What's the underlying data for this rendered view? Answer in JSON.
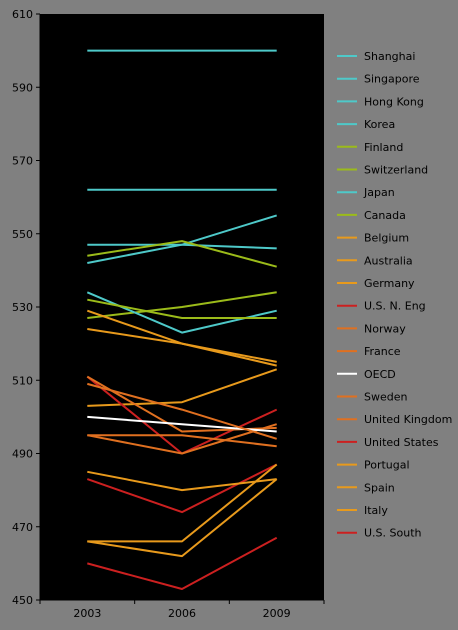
{
  "chart_data": {
    "type": "line",
    "title": "",
    "xlabel": "",
    "ylabel": "",
    "categories": [
      "2003",
      "2006",
      "2009"
    ],
    "ylim": [
      450,
      610
    ],
    "yticks": [
      450,
      470,
      490,
      510,
      530,
      550,
      570,
      590,
      610
    ],
    "grid": false,
    "legend_position": "right",
    "series": [
      {
        "name": "Shanghai",
        "color": "#4ec9c9",
        "values": [
          600,
          600,
          600
        ]
      },
      {
        "name": "Singapore",
        "color": "#4ec9c9",
        "values": [
          562,
          562,
          562
        ]
      },
      {
        "name": "Hong Kong",
        "color": "#4ec9c9",
        "values": [
          542,
          547,
          555
        ]
      },
      {
        "name": "Korea",
        "color": "#4ec9c9",
        "values": [
          547,
          547,
          546
        ]
      },
      {
        "name": "Finland",
        "color": "#9bbb1a",
        "values": [
          544,
          548,
          541
        ]
      },
      {
        "name": "Switzerland",
        "color": "#9bbb1a",
        "values": [
          527,
          530,
          534
        ]
      },
      {
        "name": "Japan",
        "color": "#4ec9c9",
        "values": [
          534,
          523,
          529
        ]
      },
      {
        "name": "Canada",
        "color": "#9bbb1a",
        "values": [
          532,
          527,
          527
        ]
      },
      {
        "name": "Belgium",
        "color": "#e89a1c",
        "values": [
          529,
          520,
          515
        ]
      },
      {
        "name": "Australia",
        "color": "#e89a1c",
        "values": [
          524,
          520,
          514
        ]
      },
      {
        "name": "Germany",
        "color": "#e89a1c",
        "values": [
          503,
          504,
          513
        ]
      },
      {
        "name": "U.S. N. Eng",
        "color": "#cc2020",
        "values": [
          511,
          490,
          502
        ]
      },
      {
        "name": "Norway",
        "color": "#e07020",
        "values": [
          495,
          490,
          498
        ]
      },
      {
        "name": "France",
        "color": "#e07020",
        "values": [
          511,
          496,
          497
        ]
      },
      {
        "name": "OECD",
        "color": "#ffffff",
        "values": [
          500,
          498,
          496
        ]
      },
      {
        "name": "Sweden",
        "color": "#e07020",
        "values": [
          509,
          502,
          494
        ]
      },
      {
        "name": "United Kingdom",
        "color": "#e07020",
        "values": [
          495,
          495,
          492
        ]
      },
      {
        "name": "United States",
        "color": "#cc2020",
        "values": [
          483,
          474,
          487
        ]
      },
      {
        "name": "Portugal",
        "color": "#e89a1c",
        "values": [
          466,
          466,
          487
        ]
      },
      {
        "name": "Spain",
        "color": "#e89a1c",
        "values": [
          485,
          480,
          483
        ]
      },
      {
        "name": "Italy",
        "color": "#e89a1c",
        "values": [
          466,
          462,
          483
        ]
      },
      {
        "name": "U.S. South",
        "color": "#cc2020",
        "values": [
          460,
          453,
          467
        ]
      }
    ]
  }
}
